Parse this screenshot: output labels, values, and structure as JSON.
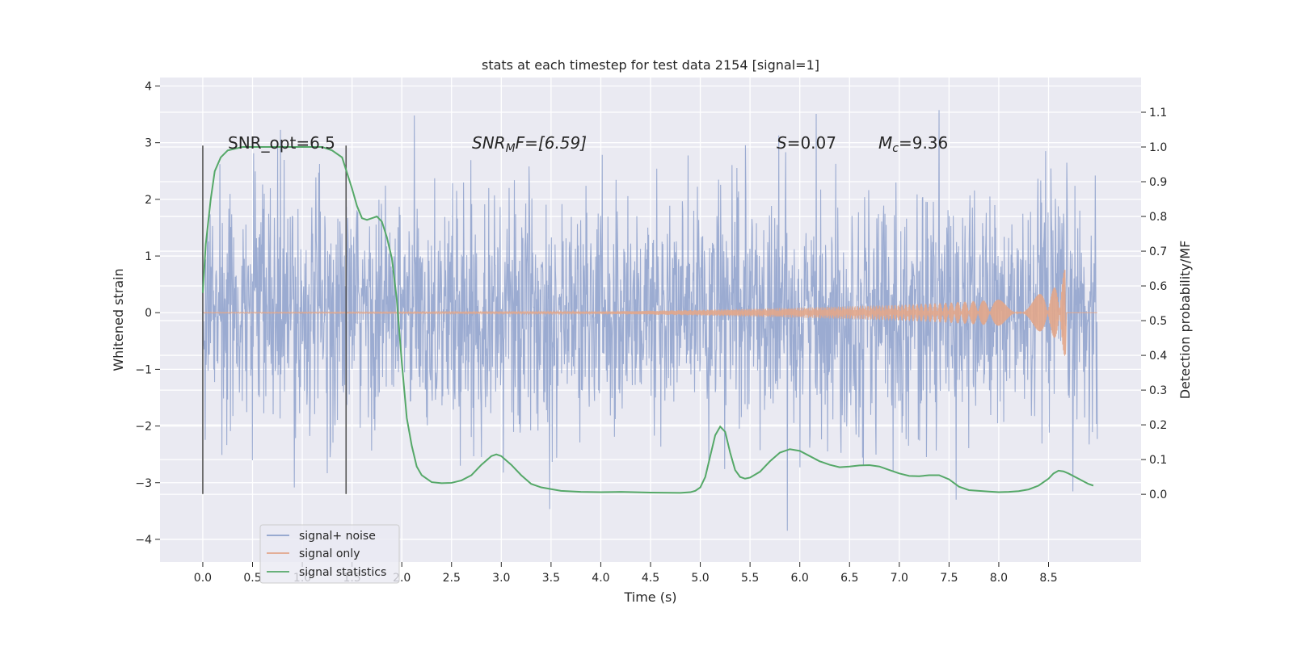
{
  "chart_data": {
    "type": "line",
    "title": "stats at each timestep for test data 2154 [signal=1]",
    "xlabel": "Time (s)",
    "ylabel": "Whitened strain",
    "y2label": "Detection probability/MF",
    "xlim": [
      -0.43,
      9.43
    ],
    "ylim": [
      -4.4,
      4.15
    ],
    "y2lim": [
      -0.195,
      1.2
    ],
    "xticks": [
      "0.0",
      "0.5",
      "1.0",
      "1.5",
      "2.0",
      "2.5",
      "3.0",
      "3.5",
      "4.0",
      "4.5",
      "5.0",
      "5.5",
      "6.0",
      "6.5",
      "7.0",
      "7.5",
      "8.0",
      "8.5"
    ],
    "yticks": [
      "4",
      "3",
      "2",
      "1",
      "0",
      "−1",
      "−2",
      "−3",
      "−4"
    ],
    "y2ticks": [
      "1.1",
      "1.0",
      "0.9",
      "0.8",
      "0.7",
      "0.6",
      "0.5",
      "0.4",
      "0.3",
      "0.2",
      "0.1",
      "0.0"
    ],
    "grid": true,
    "legend_position": "lower-left",
    "annotations": {
      "snr_opt": "SNR_opt=6.5",
      "snr_mf_var": "SNR",
      "snr_mf_sub": "M",
      "snr_mf_tail": "F=[6.59]",
      "s_var": "S",
      "s_val": "=0.07",
      "mc_var": "M",
      "mc_sub": "c",
      "mc_val": "=9.36"
    },
    "vertical_markers": [
      0.0,
      1.44
    ],
    "series": [
      {
        "name": "signal+ noise",
        "color": "#8da0cb",
        "description_range": [
          -4.0,
          3.8
        ],
        "x_range": [
          0.0,
          8.99
        ]
      },
      {
        "name": "signal only",
        "color": "#e2a68a",
        "envelope": {
          "x": [
            0.0,
            4.0,
            5.0,
            6.0,
            7.0,
            7.5,
            8.0,
            8.3,
            8.5,
            8.6,
            8.67
          ],
          "amp": [
            0.01,
            0.02,
            0.05,
            0.09,
            0.14,
            0.18,
            0.23,
            0.28,
            0.37,
            0.5,
            0.8
          ]
        }
      },
      {
        "name": "signal statistics",
        "color": "#55a868",
        "x": [
          0.0,
          0.03,
          0.08,
          0.12,
          0.18,
          0.25,
          0.4,
          0.6,
          0.8,
          1.0,
          1.2,
          1.3,
          1.4,
          1.5,
          1.55,
          1.6,
          1.65,
          1.7,
          1.75,
          1.8,
          1.85,
          1.9,
          1.95,
          2.0,
          2.05,
          2.1,
          2.15,
          2.2,
          2.3,
          2.4,
          2.5,
          2.6,
          2.7,
          2.8,
          2.9,
          2.95,
          3.0,
          3.1,
          3.2,
          3.3,
          3.4,
          3.6,
          3.8,
          4.0,
          4.2,
          4.5,
          4.8,
          4.9,
          4.95,
          5.0,
          5.05,
          5.1,
          5.15,
          5.2,
          5.25,
          5.3,
          5.35,
          5.4,
          5.45,
          5.5,
          5.6,
          5.7,
          5.8,
          5.9,
          6.0,
          6.1,
          6.2,
          6.3,
          6.4,
          6.5,
          6.6,
          6.7,
          6.8,
          6.9,
          7.0,
          7.1,
          7.2,
          7.3,
          7.4,
          7.5,
          7.6,
          7.7,
          7.8,
          7.9,
          8.0,
          8.1,
          8.2,
          8.3,
          8.4,
          8.5,
          8.55,
          8.6,
          8.65,
          8.7,
          8.8,
          8.9,
          8.95
        ],
        "values": [
          0.58,
          0.72,
          0.85,
          0.93,
          0.97,
          0.99,
          1.0,
          1.0,
          1.0,
          1.0,
          1.0,
          0.99,
          0.97,
          0.88,
          0.83,
          0.795,
          0.79,
          0.795,
          0.8,
          0.785,
          0.74,
          0.68,
          0.56,
          0.38,
          0.22,
          0.14,
          0.08,
          0.055,
          0.035,
          0.032,
          0.033,
          0.04,
          0.055,
          0.085,
          0.11,
          0.115,
          0.11,
          0.085,
          0.055,
          0.03,
          0.02,
          0.01,
          0.007,
          0.006,
          0.007,
          0.005,
          0.004,
          0.006,
          0.01,
          0.02,
          0.05,
          0.11,
          0.17,
          0.195,
          0.18,
          0.12,
          0.07,
          0.05,
          0.045,
          0.048,
          0.065,
          0.095,
          0.12,
          0.13,
          0.125,
          0.11,
          0.095,
          0.085,
          0.078,
          0.08,
          0.083,
          0.084,
          0.08,
          0.07,
          0.06,
          0.053,
          0.052,
          0.055,
          0.055,
          0.043,
          0.022,
          0.012,
          0.01,
          0.008,
          0.006,
          0.007,
          0.009,
          0.014,
          0.025,
          0.045,
          0.06,
          0.068,
          0.066,
          0.06,
          0.045,
          0.03,
          0.025
        ]
      }
    ]
  }
}
